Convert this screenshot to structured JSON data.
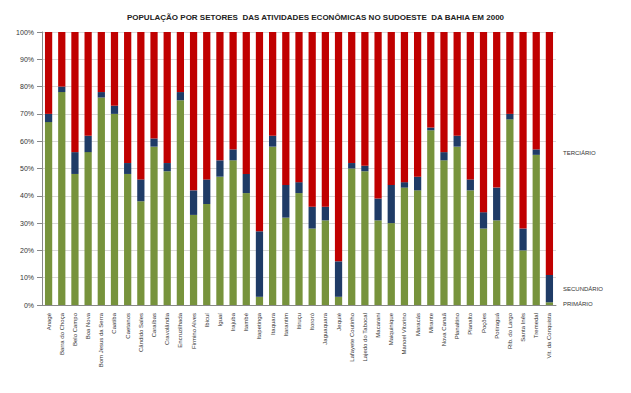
{
  "chart_data": {
    "type": "bar",
    "title": "POPULAÇÃO POR SETORES  DAS ATIVIDADES ECONÔMICAS NO SUDOESTE  DA BAHIA EM 2000",
    "stacked": true,
    "grid": true,
    "categories": [
      "Anagé",
      "Barra do Choça",
      "Belo Campo",
      "Boa Nova",
      "Bom Jesus da Serra",
      "Caatiba",
      "Caetanos",
      "Cândido Sales",
      "Caraíbas",
      "Cravolândia",
      "Encruzilhada",
      "Firmino Alves",
      "Ibicuí",
      "Iguaí",
      "Irajuba",
      "Itambé",
      "Itapetinga",
      "Itaquara",
      "Itarantim",
      "Itiruçu",
      "Itororó",
      "Jaguaquara",
      "Jequié",
      "Lafayete Coutinho",
      "Lajedo do Tabocal",
      "Macarani",
      "Maiquinique",
      "Manoel Vitorino",
      "Maracás",
      "Mirante",
      "Nova Canaã",
      "Planaltino",
      "Planalto",
      "Poções",
      "Potiraguá",
      "Rib. do Largo",
      "Santa Inês",
      "Tremedal",
      "Vit. da Conquista"
    ],
    "series": [
      {
        "name": "PRIMÁRIO",
        "color": "#77933c",
        "values": [
          67,
          78,
          48,
          56,
          76,
          70,
          48,
          38,
          58,
          49,
          75,
          33,
          37,
          47,
          53,
          41,
          3,
          58,
          32,
          41,
          28,
          31,
          3,
          50,
          49,
          31,
          30,
          43,
          42,
          64,
          53,
          58,
          42,
          28,
          31,
          68,
          20,
          55,
          1
        ]
      },
      {
        "name": "SECUNDÁRIO",
        "color": "#1f3b66",
        "values": [
          3,
          2,
          8,
          6,
          2,
          3,
          4,
          8,
          3,
          3,
          3,
          9,
          9,
          6,
          4,
          7,
          24,
          4,
          12,
          4,
          8,
          5,
          13,
          2,
          2,
          8,
          14,
          2,
          5,
          1,
          3,
          4,
          4,
          6,
          12,
          2,
          8,
          2,
          10
        ]
      },
      {
        "name": "TERCIÁRIO",
        "color": "#c00000",
        "values": [
          30,
          20,
          44,
          38,
          22,
          27,
          48,
          54,
          39,
          48,
          22,
          58,
          54,
          47,
          43,
          52,
          73,
          38,
          56,
          55,
          64,
          64,
          84,
          48,
          49,
          61,
          56,
          55,
          53,
          35,
          44,
          38,
          54,
          66,
          57,
          30,
          72,
          43,
          89
        ]
      }
    ],
    "ylim": [
      0,
      100
    ],
    "yticks": [
      {
        "value": 0,
        "label": "0%"
      },
      {
        "value": 10,
        "label": "10%"
      },
      {
        "value": 20,
        "label": "20%"
      },
      {
        "value": 30,
        "label": "30%"
      },
      {
        "value": 40,
        "label": "40%"
      },
      {
        "value": 50,
        "label": "50%"
      },
      {
        "value": 60,
        "label": "60%"
      },
      {
        "value": 70,
        "label": "70%"
      },
      {
        "value": 80,
        "label": "80%"
      },
      {
        "value": 90,
        "label": "90%"
      },
      {
        "value": 100,
        "label": "100%"
      }
    ]
  }
}
